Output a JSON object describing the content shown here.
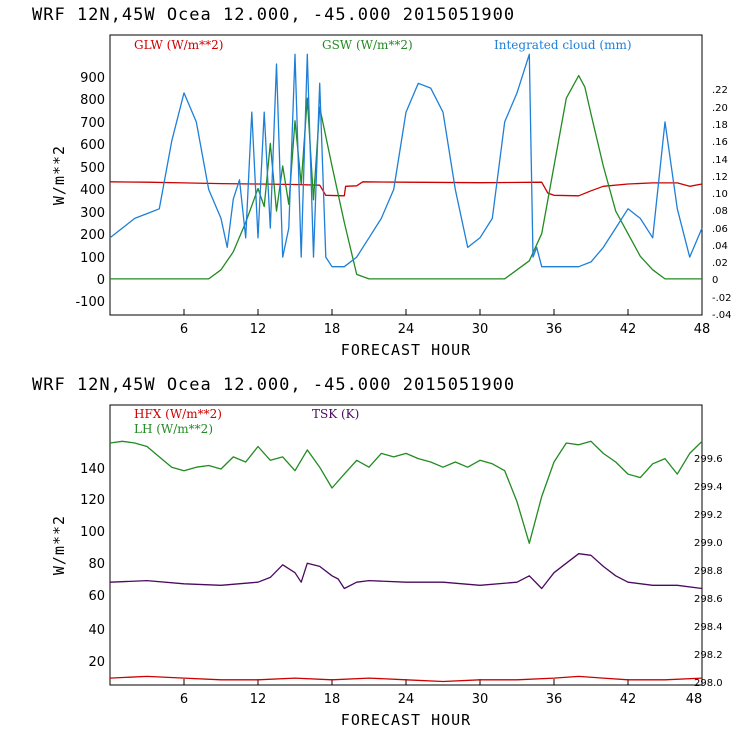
{
  "colors": {
    "red": "#cc0000",
    "green": "#228b22",
    "blue": "#1e7fd8",
    "purple": "#4b0a5e"
  },
  "panels": [
    {
      "header": "WRF  12N,45W Ocea  12.000, -45.000  2015051900",
      "xlabel": "FORECAST HOUR",
      "ylabel": "W/m**2",
      "legend": [
        "GLW (W/m**2)",
        "GSW (W/m**2)",
        "Integrated cloud (mm)"
      ],
      "yticks": [
        "900",
        "800",
        "700",
        "600",
        "500",
        "400",
        "300",
        "200",
        "100",
        "0",
        "-100"
      ],
      "rticks": [
        ".22",
        ".20",
        ".18",
        ".16",
        ".14",
        ".12",
        ".10",
        ".08",
        ".06",
        ".04",
        ".02",
        "0",
        "-.02",
        "-.04"
      ],
      "xticks": [
        "6",
        "12",
        "18",
        "24",
        "30",
        "36",
        "42",
        "48"
      ]
    },
    {
      "header": "WRF  12N,45W Ocea  12.000, -45.000  2015051900",
      "xlabel": "FORECAST HOUR",
      "ylabel": "W/m**2",
      "legend": [
        "HFX (W/m**2)",
        "LH  (W/m**2)",
        "TSK (K)"
      ],
      "yticks": [
        "140",
        "120",
        "100",
        "80",
        "60",
        "40",
        "20"
      ],
      "rticks": [
        "299.6",
        "299.4",
        "299.2",
        "299.0",
        "298.8",
        "298.6",
        "298.4",
        "298.2",
        "298.0"
      ],
      "xticks": [
        "6",
        "12",
        "18",
        "24",
        "30",
        "36",
        "42",
        "48"
      ]
    }
  ],
  "chart_data": [
    {
      "type": "line",
      "title": "WRF  12N,45W Ocea  12.000, -45.000  2015051900",
      "xlabel": "FORECAST HOUR",
      "ylabel": "W/m**2",
      "xlim": [
        0,
        48
      ],
      "ylim": [
        -160,
        1080
      ],
      "y2lim": [
        -0.05,
        0.24
      ],
      "series": [
        {
          "name": "GLW (W/m**2)",
          "axis": "left",
          "color": "#cc0000",
          "x": [
            0,
            3,
            6,
            9,
            12,
            15,
            17,
            17.5,
            19,
            19.1,
            20,
            20.5,
            24,
            30,
            35,
            35.5,
            36,
            38,
            39,
            40,
            42,
            44,
            46,
            47,
            48
          ],
          "y": [
            430,
            428,
            425,
            422,
            420,
            418,
            415,
            370,
            368,
            410,
            412,
            430,
            428,
            426,
            428,
            380,
            370,
            368,
            390,
            410,
            420,
            425,
            425,
            410,
            420
          ]
        },
        {
          "name": "GSW (W/m**2)",
          "axis": "left",
          "color": "#228b22",
          "x": [
            0,
            8,
            9,
            10,
            11,
            12,
            12.5,
            13,
            13.5,
            14,
            14.5,
            15,
            15.5,
            16,
            16.5,
            17,
            18,
            19,
            20,
            21,
            32,
            34,
            35,
            36,
            37,
            38,
            38.5,
            39,
            40,
            41,
            42,
            43,
            44,
            45,
            46,
            48
          ],
          "y": [
            0,
            0,
            40,
            120,
            250,
            400,
            320,
            600,
            300,
            500,
            330,
            700,
            420,
            800,
            350,
            760,
            500,
            250,
            20,
            0,
            0,
            80,
            200,
            500,
            800,
            900,
            850,
            730,
            500,
            300,
            200,
            100,
            40,
            0,
            0,
            0
          ]
        },
        {
          "name": "Integrated cloud (mm)",
          "axis": "right",
          "color": "#1e7fd8",
          "x": [
            0,
            1,
            2,
            3,
            4,
            5,
            6,
            7,
            8,
            9,
            9.5,
            10,
            10.5,
            11,
            11.5,
            12,
            12.5,
            13,
            13.5,
            14,
            14.5,
            15,
            15.5,
            16,
            16.5,
            17,
            17.5,
            18,
            19,
            20,
            21,
            22,
            23,
            24,
            25,
            26,
            27,
            28,
            29,
            30,
            31,
            32,
            33,
            34,
            34.3,
            34.6,
            35,
            36,
            37,
            38,
            39,
            40,
            41,
            42,
            43,
            44,
            45,
            46,
            47,
            48
          ],
          "y": [
            0.03,
            0.04,
            0.05,
            0.055,
            0.06,
            0.13,
            0.18,
            0.15,
            0.08,
            0.05,
            0.02,
            0.07,
            0.09,
            0.03,
            0.16,
            0.03,
            0.16,
            0.04,
            0.21,
            0.01,
            0.04,
            0.22,
            0.01,
            0.22,
            0.01,
            0.19,
            0.01,
            0,
            0,
            0.01,
            0.03,
            0.05,
            0.08,
            0.16,
            0.19,
            0.185,
            0.16,
            0.08,
            0.02,
            0.03,
            0.05,
            0.15,
            0.18,
            0.22,
            0.01,
            0.02,
            0,
            0,
            0,
            0,
            0.005,
            0.02,
            0.04,
            0.06,
            0.05,
            0.03,
            0.15,
            0.06,
            0.01,
            0.04
          ]
        }
      ]
    },
    {
      "type": "line",
      "title": "WRF  12N,45W Ocea  12.000, -45.000  2015051900",
      "xlabel": "FORECAST HOUR",
      "ylabel": "W/m**2",
      "xlim": [
        0,
        48
      ],
      "ylim": [
        6,
        168
      ],
      "y2lim": [
        297.99,
        299.76
      ],
      "series": [
        {
          "name": "HFX (W/m**2)",
          "axis": "left",
          "color": "#cc0000",
          "x": [
            0,
            3,
            6,
            9,
            12,
            15,
            18,
            21,
            24,
            27,
            30,
            33,
            36,
            38,
            40,
            42,
            45,
            48
          ],
          "y": [
            10,
            11,
            10,
            9,
            9,
            10,
            9,
            10,
            9,
            8,
            9,
            9,
            10,
            11,
            10,
            9,
            9,
            10
          ]
        },
        {
          "name": "LH  (W/m**2)",
          "axis": "left",
          "color": "#228b22",
          "x": [
            0,
            1,
            2,
            3,
            4,
            5,
            6,
            7,
            8,
            9,
            10,
            11,
            12,
            13,
            14,
            15,
            16,
            17,
            18,
            19,
            20,
            21,
            22,
            23,
            24,
            25,
            26,
            27,
            28,
            29,
            30,
            31,
            32,
            33,
            34,
            35,
            36,
            37,
            38,
            39,
            40,
            41,
            42,
            43,
            44,
            45,
            46,
            47,
            48
          ],
          "y": [
            146,
            147,
            146,
            144,
            138,
            132,
            130,
            132,
            133,
            131,
            138,
            135,
            144,
            136,
            138,
            130,
            142,
            132,
            120,
            128,
            136,
            132,
            140,
            138,
            140,
            137,
            135,
            132,
            135,
            132,
            136,
            134,
            130,
            112,
            88,
            115,
            135,
            146,
            145,
            147,
            140,
            135,
            128,
            126,
            134,
            137,
            128,
            140,
            147
          ]
        },
        {
          "name": "TSK (K)",
          "axis": "right",
          "color": "#4b0a5e",
          "x": [
            0,
            3,
            6,
            9,
            12,
            13,
            14,
            15,
            15.5,
            16,
            17,
            18,
            18.5,
            19,
            20,
            21,
            24,
            27,
            30,
            33,
            34,
            35,
            36,
            37,
            38,
            39,
            40,
            41,
            42,
            44,
            46,
            48
          ],
          "y": [
            298.64,
            298.65,
            298.63,
            298.62,
            298.64,
            298.67,
            298.75,
            298.7,
            298.64,
            298.76,
            298.74,
            298.68,
            298.66,
            298.6,
            298.64,
            298.65,
            298.64,
            298.64,
            298.62,
            298.64,
            298.68,
            298.6,
            298.7,
            298.76,
            298.82,
            298.81,
            298.74,
            298.68,
            298.64,
            298.62,
            298.62,
            298.6
          ]
        }
      ]
    }
  ]
}
